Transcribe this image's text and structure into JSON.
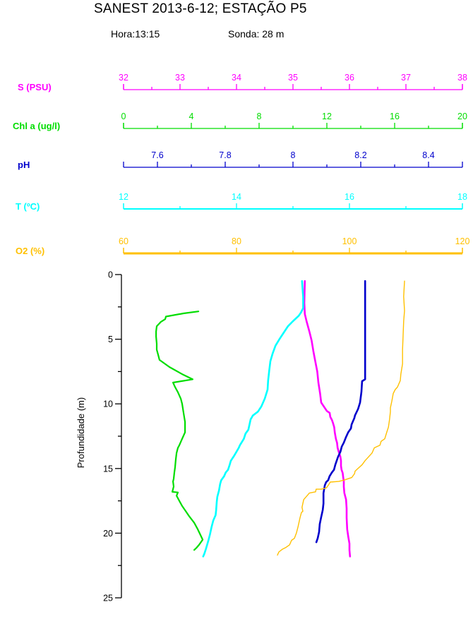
{
  "header": {
    "title": "SANEST 2013-6-12; ESTAÇÃO P5",
    "hora": "Hora:13:15",
    "sonda": "Sonda: 28 m"
  },
  "chart_data": {
    "type": "line",
    "subtype": "vertical-ctd-profile",
    "title": "SANEST 2013-6-12; ESTAÇÃO P5",
    "grid": false,
    "legend": "top-stacked-colored-axes",
    "depth_axis": {
      "label": "Profundidade (m)",
      "min": 0,
      "max": 25,
      "majors": [
        0,
        5,
        10,
        15,
        20,
        25
      ],
      "minors": [
        2.5,
        7.5,
        12.5,
        17.5,
        22.5
      ],
      "color": "#000000"
    },
    "top_axes": [
      {
        "id": "S",
        "label": "S (PSU)",
        "color": "#FF00FF",
        "min": 32,
        "max": 38,
        "majors": [
          32,
          33,
          34,
          35,
          36,
          37,
          38
        ],
        "major_labels": [
          "32",
          "33",
          "34",
          "35",
          "36",
          "37",
          "38"
        ],
        "minors": [
          32.5,
          33.5,
          34.5,
          35.5,
          36.5,
          37.5
        ]
      },
      {
        "id": "Chl",
        "label": "Chl a (ug/l)",
        "color": "#00DD00",
        "min": 0,
        "max": 20,
        "majors": [
          0,
          4,
          8,
          12,
          16,
          20
        ],
        "major_labels": [
          "0",
          "4",
          "8",
          "12",
          "16",
          "20"
        ],
        "minors": [
          2,
          6,
          10,
          14,
          18
        ]
      },
      {
        "id": "pH",
        "label": "pH",
        "color": "#0000CC",
        "min": 7.5,
        "max": 8.5,
        "majors": [
          7.6,
          7.8,
          8.0,
          8.2,
          8.4
        ],
        "major_labels": [
          "7.6",
          "7.8",
          "8",
          "8.2",
          "8.4"
        ],
        "minors": [
          7.7,
          7.9,
          8.1,
          8.3
        ]
      },
      {
        "id": "T",
        "label": "T (ºC)",
        "color": "#00FFFF",
        "min": 12,
        "max": 18,
        "majors": [
          12,
          14,
          16,
          18
        ],
        "major_labels": [
          "12",
          "14",
          "16",
          "18"
        ],
        "minors": [
          13,
          15,
          17
        ]
      },
      {
        "id": "O2",
        "label": "O2 (%)",
        "color": "#FFC000",
        "min": 60,
        "max": 120,
        "majors": [
          60,
          80,
          100,
          120
        ],
        "major_labels": [
          "60",
          "80",
          "100",
          "120"
        ],
        "minors": [
          70,
          90,
          110
        ]
      }
    ],
    "series": [
      {
        "name": "S (PSU)",
        "axis": "S",
        "color": "#FF00FF",
        "points": [
          [
            35.21,
            0.5
          ],
          [
            35.2,
            2.2
          ],
          [
            35.21,
            3.05
          ],
          [
            35.24,
            3.6
          ],
          [
            35.29,
            4.4
          ],
          [
            35.33,
            5.1
          ],
          [
            35.36,
            5.9
          ],
          [
            35.39,
            6.6
          ],
          [
            35.43,
            7.5
          ],
          [
            35.45,
            8.35
          ],
          [
            35.48,
            9.2
          ],
          [
            35.5,
            9.9
          ],
          [
            35.6,
            10.55
          ],
          [
            35.65,
            10.7
          ],
          [
            35.66,
            11.0
          ],
          [
            35.69,
            11.25
          ],
          [
            35.71,
            11.5
          ],
          [
            35.73,
            11.8
          ],
          [
            35.74,
            12.2
          ],
          [
            35.76,
            12.7
          ],
          [
            35.78,
            13.0
          ],
          [
            35.79,
            13.4
          ],
          [
            35.81,
            13.7
          ],
          [
            35.84,
            14.1
          ],
          [
            35.85,
            14.4
          ],
          [
            35.85,
            14.8
          ],
          [
            35.86,
            15.1
          ],
          [
            35.88,
            15.35
          ],
          [
            35.89,
            15.7
          ],
          [
            35.9,
            16.0
          ],
          [
            35.9,
            16.4
          ],
          [
            35.91,
            16.9
          ],
          [
            35.94,
            17.4
          ],
          [
            35.95,
            18.1
          ],
          [
            35.95,
            18.8
          ],
          [
            35.96,
            19.7
          ],
          [
            35.98,
            20.3
          ],
          [
            36.0,
            20.8
          ],
          [
            36.0,
            21.3
          ],
          [
            36.01,
            21.8
          ]
        ]
      },
      {
        "name": "Chl a (ug/l)",
        "axis": "Chl",
        "color": "#00DD00",
        "points": [
          [
            4.42,
            2.85
          ],
          [
            3.54,
            3.0
          ],
          [
            2.5,
            3.25
          ],
          [
            2.46,
            3.45
          ],
          [
            2.21,
            3.65
          ],
          [
            1.96,
            4.0
          ],
          [
            1.92,
            4.4
          ],
          [
            1.92,
            4.8
          ],
          [
            1.96,
            5.35
          ],
          [
            1.96,
            5.8
          ],
          [
            2.04,
            6.2
          ],
          [
            2.12,
            6.6
          ],
          [
            2.71,
            7.15
          ],
          [
            3.46,
            7.7
          ],
          [
            4.08,
            8.1
          ],
          [
            2.92,
            8.35
          ],
          [
            3.04,
            8.7
          ],
          [
            3.21,
            9.1
          ],
          [
            3.38,
            9.6
          ],
          [
            3.46,
            10.0
          ],
          [
            3.54,
            10.7
          ],
          [
            3.63,
            11.4
          ],
          [
            3.63,
            12.2
          ],
          [
            3.46,
            12.7
          ],
          [
            3.29,
            13.2
          ],
          [
            3.21,
            13.4
          ],
          [
            3.13,
            13.8
          ],
          [
            3.08,
            14.35
          ],
          [
            3.04,
            14.9
          ],
          [
            3.0,
            15.3
          ],
          [
            2.96,
            15.8
          ],
          [
            2.92,
            16.0
          ],
          [
            2.96,
            16.4
          ],
          [
            2.88,
            16.8
          ],
          [
            3.21,
            16.85
          ],
          [
            3.13,
            17.1
          ],
          [
            3.29,
            17.5
          ],
          [
            3.46,
            17.9
          ],
          [
            3.67,
            18.3
          ],
          [
            3.88,
            18.7
          ],
          [
            4.17,
            19.2
          ],
          [
            4.38,
            19.7
          ],
          [
            4.58,
            20.25
          ],
          [
            4.67,
            20.5
          ],
          [
            4.46,
            20.9
          ],
          [
            4.29,
            21.15
          ],
          [
            4.17,
            21.3
          ]
        ]
      },
      {
        "name": "pH",
        "axis": "pH",
        "color": "#0000CC",
        "points": [
          [
            8.213,
            0.5
          ],
          [
            8.213,
            8.1
          ],
          [
            8.204,
            8.25
          ],
          [
            8.202,
            9.05
          ],
          [
            8.198,
            9.9
          ],
          [
            8.192,
            10.4
          ],
          [
            8.183,
            10.9
          ],
          [
            8.181,
            11.1
          ],
          [
            8.173,
            11.6
          ],
          [
            8.171,
            11.9
          ],
          [
            8.163,
            12.2
          ],
          [
            8.156,
            12.6
          ],
          [
            8.15,
            13.0
          ],
          [
            8.144,
            13.3
          ],
          [
            8.14,
            13.7
          ],
          [
            8.133,
            14.1
          ],
          [
            8.129,
            14.4
          ],
          [
            8.125,
            14.7
          ],
          [
            8.121,
            15.1
          ],
          [
            8.115,
            15.3
          ],
          [
            8.108,
            15.6
          ],
          [
            8.104,
            15.9
          ],
          [
            8.098,
            16.05
          ],
          [
            8.094,
            16.3
          ],
          [
            8.09,
            16.9
          ],
          [
            8.09,
            17.7
          ],
          [
            8.088,
            18.2
          ],
          [
            8.083,
            18.8
          ],
          [
            8.079,
            19.3
          ],
          [
            8.077,
            19.9
          ],
          [
            8.073,
            20.4
          ],
          [
            8.069,
            20.7
          ]
        ]
      },
      {
        "name": "T (ºC)",
        "axis": "T",
        "color": "#00FFFF",
        "points": [
          [
            15.16,
            0.5
          ],
          [
            15.18,
            1.7
          ],
          [
            15.18,
            2.6
          ],
          [
            15.14,
            2.95
          ],
          [
            15.1,
            3.2
          ],
          [
            15.0,
            3.6
          ],
          [
            14.91,
            4.0
          ],
          [
            14.85,
            4.4
          ],
          [
            14.76,
            5.0
          ],
          [
            14.69,
            5.5
          ],
          [
            14.64,
            6.1
          ],
          [
            14.6,
            6.7
          ],
          [
            14.58,
            7.4
          ],
          [
            14.56,
            8.2
          ],
          [
            14.55,
            8.9
          ],
          [
            14.5,
            9.6
          ],
          [
            14.44,
            10.2
          ],
          [
            14.38,
            10.6
          ],
          [
            14.29,
            10.9
          ],
          [
            14.25,
            11.2
          ],
          [
            14.21,
            12.0
          ],
          [
            14.16,
            12.3
          ],
          [
            14.13,
            12.7
          ],
          [
            14.06,
            13.2
          ],
          [
            14.04,
            13.4
          ],
          [
            13.96,
            14.0
          ],
          [
            13.9,
            14.4
          ],
          [
            13.88,
            14.7
          ],
          [
            13.85,
            15.1
          ],
          [
            13.81,
            15.3
          ],
          [
            13.78,
            15.6
          ],
          [
            13.73,
            15.9
          ],
          [
            13.71,
            16.2
          ],
          [
            13.69,
            16.7
          ],
          [
            13.66,
            17.2
          ],
          [
            13.65,
            17.6
          ],
          [
            13.64,
            18.2
          ],
          [
            13.63,
            18.6
          ],
          [
            13.59,
            19.0
          ],
          [
            13.56,
            19.5
          ],
          [
            13.53,
            20.1
          ],
          [
            13.5,
            20.6
          ],
          [
            13.46,
            21.2
          ],
          [
            13.43,
            21.6
          ],
          [
            13.41,
            21.8
          ]
        ]
      },
      {
        "name": "O2 (%)",
        "axis": "O2",
        "color": "#FFC000",
        "points": [
          [
            109.75,
            0.5
          ],
          [
            109.6,
            1.7
          ],
          [
            109.75,
            2.8
          ],
          [
            109.6,
            3.6
          ],
          [
            109.5,
            4.7
          ],
          [
            109.4,
            5.8
          ],
          [
            109.4,
            6.9
          ],
          [
            109.1,
            7.7
          ],
          [
            109.0,
            8.2
          ],
          [
            108.5,
            8.7
          ],
          [
            108.1,
            8.9
          ],
          [
            107.75,
            9.2
          ],
          [
            107.5,
            9.8
          ],
          [
            107.25,
            10.3
          ],
          [
            107.25,
            10.6
          ],
          [
            107.1,
            11.2
          ],
          [
            106.9,
            11.8
          ],
          [
            106.6,
            12.2
          ],
          [
            106.25,
            12.7
          ],
          [
            105.6,
            12.9
          ],
          [
            105.4,
            13.2
          ],
          [
            104.4,
            13.4
          ],
          [
            104.1,
            13.7
          ],
          [
            104.0,
            13.8
          ],
          [
            102.75,
            14.4
          ],
          [
            102.25,
            14.7
          ],
          [
            101.0,
            15.2
          ],
          [
            100.9,
            15.4
          ],
          [
            100.4,
            15.7
          ],
          [
            99.0,
            15.9
          ],
          [
            98.1,
            16.0
          ],
          [
            96.6,
            16.05
          ],
          [
            96.25,
            16.3
          ],
          [
            95.9,
            16.5
          ],
          [
            95.0,
            16.6
          ],
          [
            94.1,
            16.6
          ],
          [
            94.0,
            16.8
          ],
          [
            92.9,
            16.9
          ],
          [
            92.5,
            17.1
          ],
          [
            91.9,
            17.4
          ],
          [
            91.6,
            18.0
          ],
          [
            91.75,
            18.3
          ],
          [
            91.5,
            18.4
          ],
          [
            91.25,
            18.8
          ],
          [
            90.9,
            19.5
          ],
          [
            90.6,
            20.0
          ],
          [
            90.25,
            20.4
          ],
          [
            89.75,
            20.55
          ],
          [
            89.4,
            20.9
          ],
          [
            88.75,
            21.1
          ],
          [
            88.1,
            21.25
          ],
          [
            87.5,
            21.45
          ],
          [
            87.25,
            21.7
          ]
        ]
      }
    ]
  }
}
